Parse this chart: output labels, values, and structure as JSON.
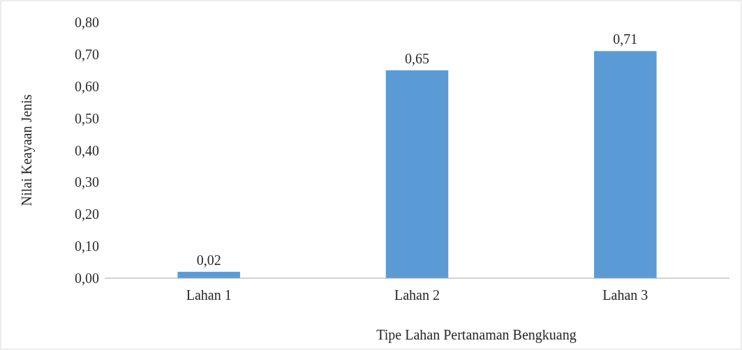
{
  "chart_data": {
    "type": "bar",
    "xlabel": "Tipe Lahan Pertanaman  Bengkuang",
    "ylabel": "Nilai Keayaan Jenis",
    "categories": [
      "Lahan 1",
      "Lahan 2",
      "Lahan 3"
    ],
    "values": [
      0.02,
      0.65,
      0.71
    ],
    "color": "#5b9bd5",
    "value_labels": [
      "0,02",
      "0,65",
      "0,71"
    ],
    "ylim": [
      0,
      0.8
    ],
    "yticks": [
      {
        "value": 0,
        "label": "0,00"
      },
      {
        "value": 0.1,
        "label": "0,10"
      },
      {
        "value": 0.2,
        "label": "0,20"
      },
      {
        "value": 0.3,
        "label": "0,30"
      },
      {
        "value": 0.4,
        "label": "0,40"
      },
      {
        "value": 0.5,
        "label": "0,50"
      },
      {
        "value": 0.6,
        "label": "0,60"
      },
      {
        "value": 0.7,
        "label": "0,70"
      },
      {
        "value": 0.8,
        "label": "0,80"
      }
    ],
    "grid": false
  }
}
